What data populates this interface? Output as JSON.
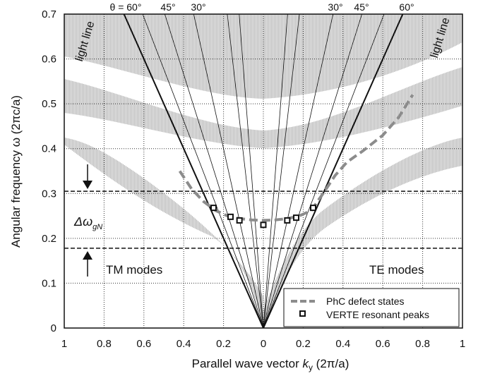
{
  "chart_data": {
    "type": "line",
    "xlabel_prefix": "Parallel wave vector ",
    "xlabel_var": "k",
    "xlabel_sub": "y",
    "xlabel_suffix": " (2π/a)",
    "ylabel": "Angular frequency  ω (2πc/a)",
    "xlim": [
      -1,
      1
    ],
    "ylim": [
      0,
      0.7
    ],
    "x_tick_values": [
      -1,
      -0.8,
      -0.6,
      -0.4,
      -0.2,
      0,
      0.2,
      0.4,
      0.6,
      0.8,
      1
    ],
    "x_tick_labels": [
      "1",
      "0.8",
      "0.6",
      "0.4",
      "0.2",
      "0",
      "0.2",
      "0.4",
      "0.6",
      "0.8",
      "1"
    ],
    "y_tick_values": [
      0,
      0.1,
      0.2,
      0.3,
      0.4,
      0.5,
      0.6,
      0.7
    ],
    "y_tick_labels": [
      "0",
      "0.1",
      "0.2",
      "0.3",
      "0.4",
      "0.5",
      "0.6",
      "0.7"
    ],
    "grid": true,
    "light_line_label": "light line",
    "angle_labels": {
      "left": [
        "θ = 60°",
        "45°",
        "30°"
      ],
      "right": [
        "30°",
        "45°",
        "60°"
      ]
    },
    "angle_degrees": [
      60,
      45,
      30,
      15,
      10
    ],
    "band_gap": {
      "lower": 0.178,
      "upper": 0.305,
      "label_symbol": "Δω",
      "label_sub": "gN"
    },
    "mode_labels": {
      "left": "TM modes",
      "right": "TE modes"
    },
    "series": [
      {
        "name": "PhC defect states",
        "style": "dashed",
        "color": "#8c8c8c",
        "x": [
          -0.42,
          -0.36,
          -0.3,
          -0.24,
          -0.18,
          -0.12,
          -0.06,
          0,
          0.06,
          0.12,
          0.18,
          0.24,
          0.3,
          0.36,
          0.42,
          0.5,
          0.6,
          0.68,
          0.75
        ],
        "y": [
          0.35,
          0.31,
          0.282,
          0.262,
          0.25,
          0.244,
          0.241,
          0.24,
          0.241,
          0.244,
          0.25,
          0.262,
          0.3,
          0.34,
          0.37,
          0.395,
          0.43,
          0.47,
          0.52
        ]
      },
      {
        "name": "VERTE resonant peaks",
        "style": "markers",
        "color": "#111111",
        "x": [
          -0.25,
          -0.165,
          -0.12,
          0,
          0.12,
          0.165,
          0.25
        ],
        "y": [
          0.268,
          0.248,
          0.24,
          0.23,
          0.24,
          0.246,
          0.268
        ]
      }
    ],
    "legend_position": "bottom-right"
  }
}
